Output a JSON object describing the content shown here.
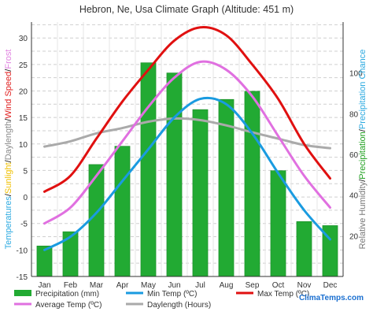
{
  "chart_data": {
    "type": "bar",
    "title": "Hebron, Ne, Usa Climate Graph (Altitude: 451 m)",
    "categories": [
      "Jan",
      "Feb",
      "Mar",
      "Apr",
      "May",
      "Jun",
      "Jul",
      "Aug",
      "Sep",
      "Oct",
      "Nov",
      "Dec"
    ],
    "left_axis": {
      "ylim": [
        -15,
        33
      ],
      "ticks": [
        30,
        25,
        20,
        15,
        10,
        5,
        0,
        -5,
        -10,
        -15
      ],
      "label_parts": [
        {
          "text": "Temperatures",
          "color": "#2aa9e0"
        },
        {
          "text": "/",
          "color": "#000000"
        },
        {
          "text": "Sunlight",
          "color": "#f0c000"
        },
        {
          "text": "/",
          "color": "#000000"
        },
        {
          "text": "Daylength",
          "color": "#8a8a8a"
        },
        {
          "text": "/",
          "color": "#000000"
        },
        {
          "text": "Wind Speed",
          "color": "#e02020"
        },
        {
          "text": "/",
          "color": "#000000"
        },
        {
          "text": "Frost",
          "color": "#e080e0"
        }
      ]
    },
    "right_axis": {
      "ylim": [
        0,
        125
      ],
      "ticks": [
        100,
        80,
        60,
        40,
        20
      ],
      "label_parts": [
        {
          "text": "Relative Humidity",
          "color": "#777777"
        },
        {
          "text": "/",
          "color": "#000000"
        },
        {
          "text": "Precipitation",
          "color": "#20a020"
        },
        {
          "text": "/",
          "color": "#000000"
        },
        {
          "text": "Precipitation Chance",
          "color": "#2aa9e0"
        }
      ]
    },
    "series": [
      {
        "name": "Precipitation (mm)",
        "kind": "bar",
        "axis": "right",
        "color": "#22aa33",
        "values": [
          15,
          22,
          55,
          64,
          105,
          100,
          82,
          87,
          91,
          52,
          27,
          25
        ]
      },
      {
        "name": "Min Temp (ºC)",
        "kind": "line",
        "axis": "left",
        "color": "#1a9be0",
        "values": [
          -10,
          -7.5,
          -3,
          3,
          9,
          15,
          18.5,
          17.5,
          12,
          4.5,
          -2.5,
          -8
        ]
      },
      {
        "name": "Max Temp (ºC)",
        "kind": "line",
        "axis": "left",
        "color": "#e01010",
        "values": [
          1,
          4,
          11,
          18,
          24,
          29.5,
          32,
          30.5,
          25,
          18.5,
          10,
          3.5
        ]
      },
      {
        "name": "Average Temp (ºC)",
        "kind": "line",
        "axis": "left",
        "color": "#e070e0",
        "values": [
          -5,
          -2,
          4,
          10.5,
          17,
          22.5,
          25.5,
          24,
          19,
          11.5,
          4,
          -2
        ]
      },
      {
        "name": "Daylength (Hours)",
        "kind": "line",
        "axis": "left",
        "color": "#aaaaaa",
        "values": [
          9.5,
          10.5,
          12,
          13,
          14.2,
          14.8,
          14.5,
          13.5,
          12.2,
          11,
          9.8,
          9.2
        ]
      }
    ],
    "legend": [
      {
        "label": "Precipitation (mm)",
        "color": "#22aa33",
        "style": "box"
      },
      {
        "label": "Min Temp (ºC)",
        "color": "#1a9be0",
        "style": "line"
      },
      {
        "label": "Max Temp (ºC)",
        "color": "#e01010",
        "style": "line"
      },
      {
        "label": "Average Temp (ºC)",
        "color": "#e070e0",
        "style": "line"
      },
      {
        "label": "Daylength (Hours)",
        "color": "#aaaaaa",
        "style": "line"
      }
    ],
    "grid": true,
    "legend_position": "bottom"
  },
  "watermark": "ClimaTemps.com"
}
